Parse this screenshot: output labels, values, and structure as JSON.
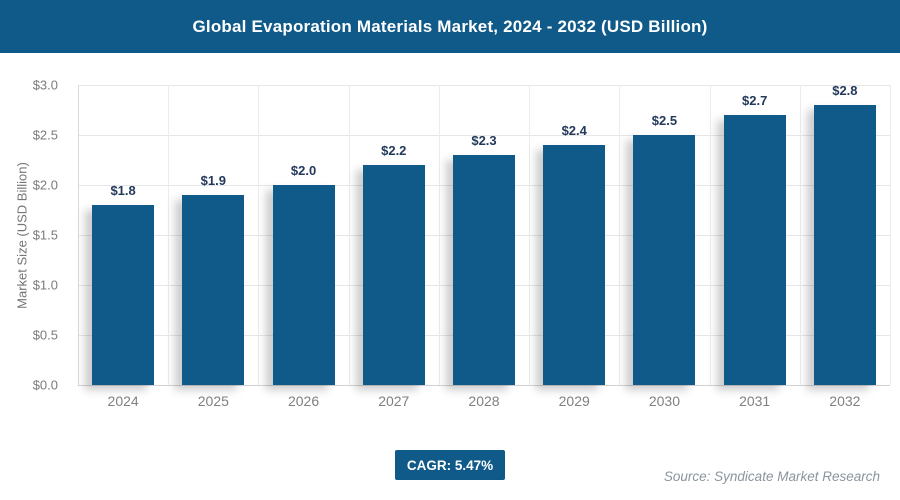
{
  "header": {
    "title": "Global Evaporation Materials Market, 2024 - 2032 (USD Billion)"
  },
  "chart_data": {
    "type": "bar",
    "title": "Global Evaporation Materials Market, 2024 - 2032 (USD Billion)",
    "categories": [
      "2024",
      "2025",
      "2026",
      "2027",
      "2028",
      "2029",
      "2030",
      "2031",
      "2032"
    ],
    "values": [
      1.8,
      1.9,
      2.0,
      2.2,
      2.3,
      2.4,
      2.5,
      2.7,
      2.8
    ],
    "value_labels": [
      "$1.8",
      "$1.9",
      "$2.0",
      "$2.2",
      "$2.3",
      "$2.4",
      "$2.5",
      "$2.7",
      "$2.8"
    ],
    "xlabel": "",
    "ylabel": "Market Size (USD Billion)",
    "ylim": [
      0,
      3.0
    ],
    "ytick_step": 0.5,
    "ytick_labels": [
      "$0.0",
      "$0.5",
      "$1.0",
      "$1.5",
      "$2.0",
      "$2.5",
      "$3.0"
    ],
    "grid": true,
    "legend": "none"
  },
  "colors": {
    "header_bg": "#0f5a88",
    "bar_fill": "#0f5a88",
    "value_label_color": "#23395b",
    "badge_bg": "#0f5a88",
    "badge_text": "#ffffff"
  },
  "footer": {
    "cagr_label": "CAGR: 5.47%",
    "source": "Source: Syndicate Market Research"
  }
}
